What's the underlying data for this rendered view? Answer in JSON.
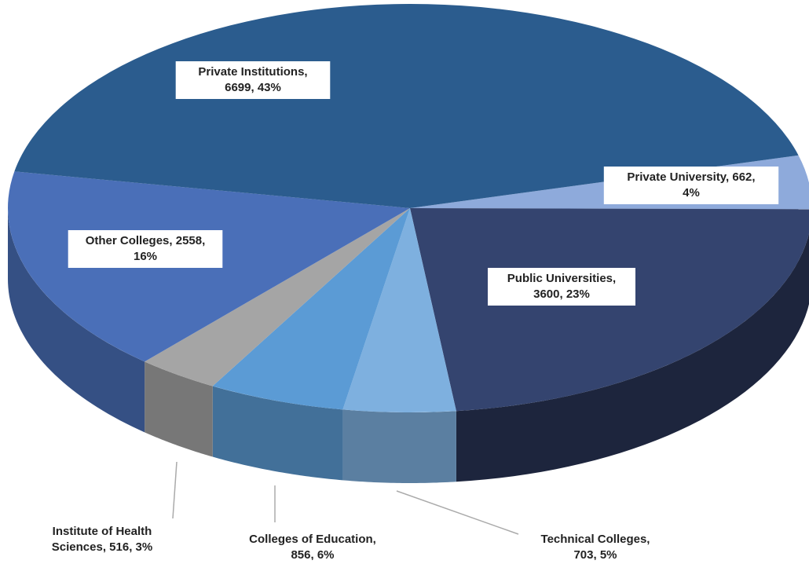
{
  "chart_data": {
    "type": "pie",
    "values": [
      662,
      3600,
      703,
      856,
      516,
      2558,
      6699
    ],
    "value_labels": [
      [
        "Private University, 662,",
        "4%"
      ],
      [
        "Public Universities,",
        "3600, 23%"
      ],
      [
        "Technical Colleges,",
        "703, 5%"
      ],
      [
        "Colleges of Education,",
        "856, 6%"
      ],
      [
        "Institute of Health",
        "Sciences, 516, 3%"
      ],
      [
        "Other Colleges, 2558,",
        "16%"
      ],
      [
        "Private Institutions,",
        "6699, 43%"
      ]
    ],
    "colors": [
      "#8eaadb",
      "#34446f",
      "#7eb0df",
      "#5b9bd5",
      "#a5a5a5",
      "#4a6fb8",
      "#2b5c8e"
    ]
  }
}
